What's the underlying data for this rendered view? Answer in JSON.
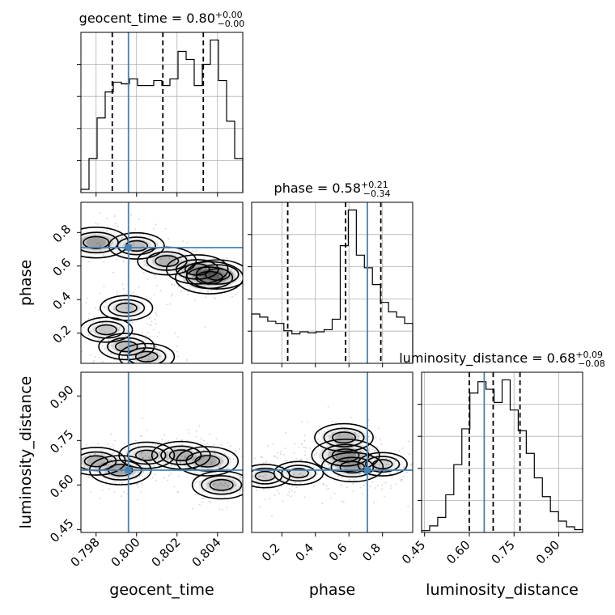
{
  "chart_data": {
    "type": "corner",
    "truths": {
      "geocent_time": 0.7996,
      "phase": 0.71,
      "luminosity_distance": 0.65
    },
    "truth_color": "#4682b4",
    "parameters": [
      {
        "name": "geocent_time",
        "axis_label": "geocent_time",
        "title_prefix": "geocent_time = 0.80",
        "title_sup": "+0.00",
        "title_sub": "−0.00",
        "range": [
          0.79725,
          0.80525
        ],
        "ticks": [
          "0.798",
          "0.800",
          "0.802",
          "0.804"
        ],
        "tick_values": [
          0.798,
          0.8,
          0.802,
          0.804
        ],
        "quantiles": [
          0.7988,
          0.8013,
          0.8033
        ],
        "hist_x": [
          0.79725,
          0.79765,
          0.79805,
          0.79845,
          0.79885,
          0.79925,
          0.79965,
          0.80005,
          0.80045,
          0.80085,
          0.80125,
          0.80165,
          0.80205,
          0.80245,
          0.80285,
          0.80325,
          0.80365,
          0.80405,
          0.80445,
          0.80485,
          0.80525
        ],
        "hist_y": [
          2,
          21,
          46,
          62,
          68,
          67,
          70,
          66,
          66,
          69,
          66,
          70,
          87,
          82,
          66,
          79,
          94,
          69,
          44,
          21
        ]
      },
      {
        "name": "phase",
        "axis_label": "phase",
        "title_prefix": "phase = 0.58",
        "title_sup": "+0.21",
        "title_sub": "−0.34",
        "range": [
          0.02,
          0.98
        ],
        "ticks": [
          "0.2",
          "0.4",
          "0.6",
          "0.8"
        ],
        "tick_values": [
          0.2,
          0.4,
          0.6,
          0.8
        ],
        "quantiles": [
          0.235,
          0.58,
          0.79
        ],
        "hist_x": [
          0.02,
          0.068,
          0.116,
          0.164,
          0.212,
          0.26,
          0.308,
          0.356,
          0.404,
          0.452,
          0.5,
          0.548,
          0.596,
          0.644,
          0.692,
          0.74,
          0.788,
          0.836,
          0.884,
          0.932,
          0.98
        ],
        "hist_y": [
          47,
          44,
          40,
          38,
          31,
          28,
          30,
          29,
          30,
          32,
          42,
          112,
          146,
          103,
          91,
          75,
          58,
          49,
          44,
          38
        ]
      },
      {
        "name": "luminosity_distance",
        "axis_label": "luminosity_distance",
        "title_prefix": "luminosity_distance = 0.68",
        "title_sup": "+0.09",
        "title_sub": "−0.08",
        "range": [
          0.44,
          0.98
        ],
        "ticks": [
          "0.45",
          "0.60",
          "0.75",
          "0.90"
        ],
        "tick_values": [
          0.45,
          0.6,
          0.75,
          0.9
        ],
        "quantiles": [
          0.6,
          0.68,
          0.77
        ],
        "hist_x": [
          0.44,
          0.467,
          0.494,
          0.521,
          0.548,
          0.575,
          0.602,
          0.629,
          0.656,
          0.683,
          0.71,
          0.737,
          0.764,
          0.791,
          0.818,
          0.845,
          0.872,
          0.899,
          0.926,
          0.953,
          0.98
        ],
        "hist_y": [
          2,
          7,
          16,
          40,
          72,
          110,
          148,
          160,
          152,
          138,
          162,
          130,
          108,
          84,
          58,
          38,
          22,
          12,
          6,
          3
        ]
      }
    ],
    "density_blobs": {
      "phase_vs_geocent_time": [
        {
          "x": 0.798,
          "y": 0.74,
          "w": 0.9
        },
        {
          "x": 0.8,
          "y": 0.72,
          "w": 0.6
        },
        {
          "x": 0.8015,
          "y": 0.63,
          "w": 0.7
        },
        {
          "x": 0.803,
          "y": 0.58,
          "w": 0.8
        },
        {
          "x": 0.8036,
          "y": 0.53,
          "w": 1.0
        },
        {
          "x": 0.804,
          "y": 0.55,
          "w": 0.8
        },
        {
          "x": 0.7995,
          "y": 0.35,
          "w": 0.5
        },
        {
          "x": 0.7985,
          "y": 0.22,
          "w": 0.5
        },
        {
          "x": 0.7995,
          "y": 0.12,
          "w": 0.6
        },
        {
          "x": 0.8005,
          "y": 0.06,
          "w": 0.6
        }
      ],
      "luminosity_distance_vs_geocent_time": [
        {
          "x": 0.798,
          "y": 0.68,
          "w": 0.7
        },
        {
          "x": 0.7992,
          "y": 0.65,
          "w": 0.8
        },
        {
          "x": 0.8005,
          "y": 0.7,
          "w": 0.6
        },
        {
          "x": 0.8022,
          "y": 0.7,
          "w": 0.7
        },
        {
          "x": 0.8035,
          "y": 0.68,
          "w": 0.8
        },
        {
          "x": 0.8042,
          "y": 0.6,
          "w": 0.7
        }
      ],
      "luminosity_distance_vs_phase": [
        {
          "x": 0.58,
          "y": 0.7,
          "w": 1.0
        },
        {
          "x": 0.62,
          "y": 0.66,
          "w": 0.8
        },
        {
          "x": 0.57,
          "y": 0.76,
          "w": 0.7
        },
        {
          "x": 0.3,
          "y": 0.64,
          "w": 0.4
        },
        {
          "x": 0.1,
          "y": 0.63,
          "w": 0.4
        },
        {
          "x": 0.8,
          "y": 0.67,
          "w": 0.4
        }
      ]
    }
  }
}
